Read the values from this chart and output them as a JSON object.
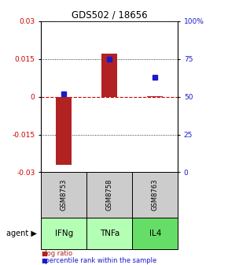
{
  "title": "GDS502 / 18656",
  "samples": [
    "GSM8753",
    "GSM8758",
    "GSM8763"
  ],
  "agents": [
    "IFNg",
    "TNFa",
    "IL4"
  ],
  "log_ratios": [
    -0.027,
    0.017,
    0.0001
  ],
  "percentile_ranks": [
    52,
    75,
    63
  ],
  "ylim_left": [
    -0.03,
    0.03
  ],
  "ylim_right": [
    0,
    100
  ],
  "yticks_left": [
    -0.03,
    -0.015,
    0,
    0.015,
    0.03
  ],
  "yticks_right": [
    0,
    25,
    50,
    75,
    100
  ],
  "ytick_labels_right": [
    "0",
    "25",
    "50",
    "75",
    "100%"
  ],
  "bar_color": "#b22222",
  "dot_color": "#1a1acd",
  "zero_line_color": "#cc0000",
  "sample_bg_color": "#cccccc",
  "agent_color_light": "#b3ffb3",
  "agent_color_dark": "#66dd66",
  "agent_label": "agent"
}
